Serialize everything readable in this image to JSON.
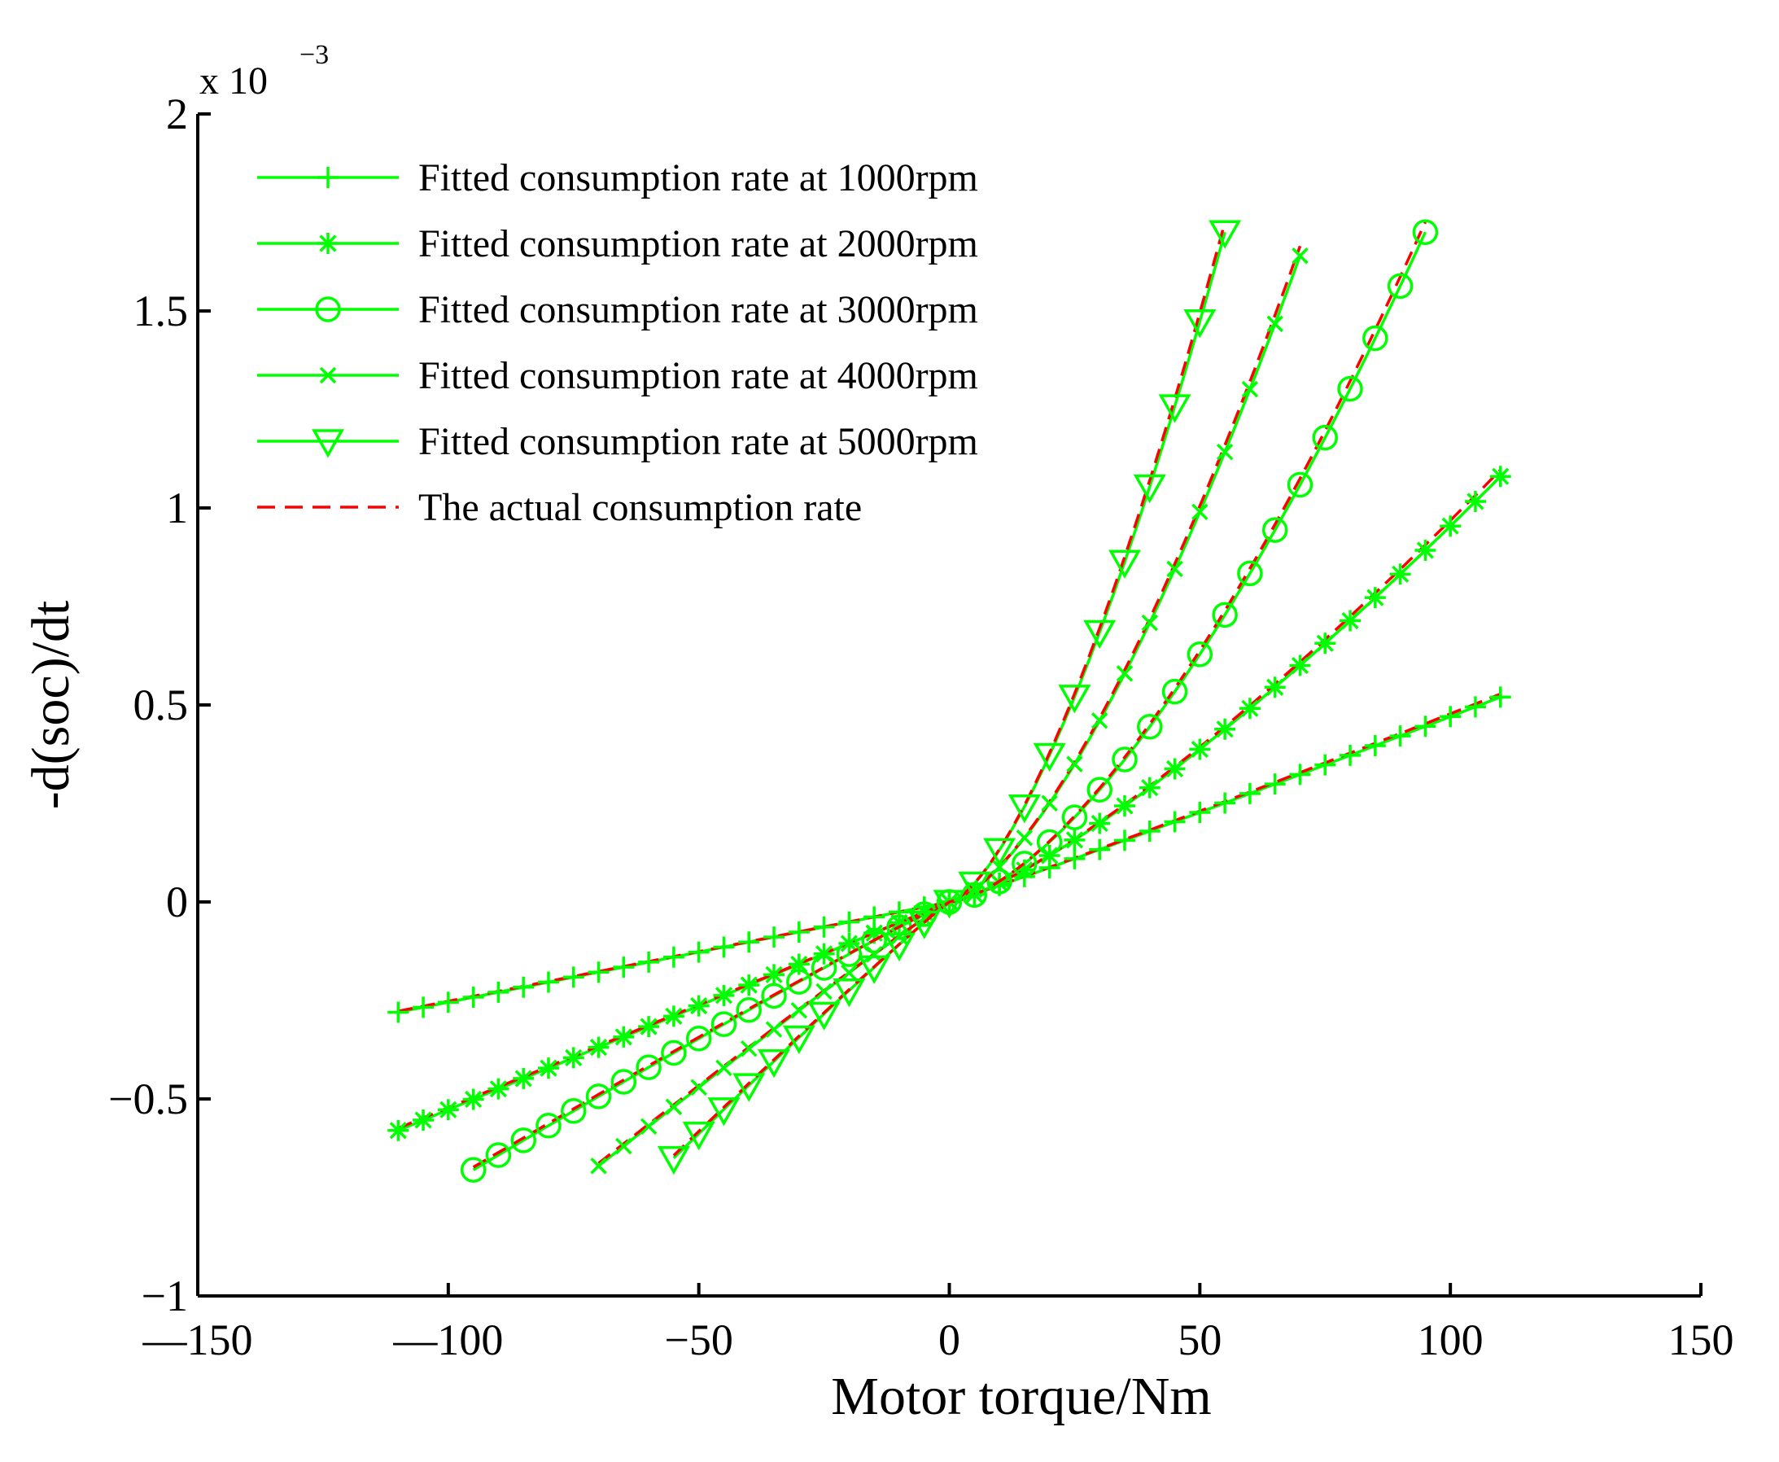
{
  "chart_data": {
    "type": "line",
    "title": "",
    "xlabel": "Motor torque/Nm",
    "ylabel": "-d(soc)/dt",
    "y_multiplier_label": "x 10",
    "y_multiplier_exponent": "−3",
    "xlim": [
      -150,
      150
    ],
    "ylim": [
      -1,
      2
    ],
    "grid": false,
    "legend_position": "top-left",
    "x_ticks": [
      -150,
      -100,
      -50,
      0,
      50,
      100,
      150
    ],
    "x_tick_labels": [
      "—150",
      "—100",
      "−50",
      "0",
      "50",
      "100",
      "150"
    ],
    "y_ticks": [
      -1,
      -0.5,
      0,
      0.5,
      1,
      1.5,
      2
    ],
    "y_tick_labels": [
      "−1",
      "−0.5",
      "0",
      "0.5",
      "1",
      "1.5",
      "2"
    ],
    "fitted_color": "#00ff00",
    "actual_color": "#ff0000",
    "series": [
      {
        "name": "Fitted consumption rate at 1000rpm",
        "marker": "plus",
        "x_min": -110,
        "x_max": 110,
        "step": 5,
        "neg_end": -0.28,
        "pos_end": 0.52,
        "neg_exp": 1.0,
        "pos_exp": 1.05
      },
      {
        "name": "Fitted consumption rate at 2000rpm",
        "marker": "star",
        "x_min": -110,
        "x_max": 110,
        "step": 5,
        "neg_end": -0.58,
        "pos_end": 1.08,
        "neg_exp": 1.0,
        "pos_exp": 1.3
      },
      {
        "name": "Fitted consumption rate at 3000rpm",
        "marker": "circle",
        "x_min": -95,
        "x_max": 95,
        "step": 5,
        "neg_end": -0.68,
        "pos_end": 1.7,
        "neg_exp": 1.05,
        "pos_exp": 1.55
      },
      {
        "name": "Fitted consumption rate at 4000rpm",
        "marker": "cross",
        "x_min": -70,
        "x_max": 70,
        "step": 5,
        "neg_end": -0.67,
        "pos_end": 1.64,
        "neg_exp": 1.05,
        "pos_exp": 1.5
      },
      {
        "name": "Fitted consumption rate at 5000rpm",
        "marker": "triangle",
        "x_min": -55,
        "x_max": 55,
        "step": 5,
        "neg_end": -0.65,
        "pos_end": 1.7,
        "neg_exp": 1.05,
        "pos_exp": 1.5
      }
    ],
    "actual": {
      "name": "The actual consumption rate"
    }
  }
}
